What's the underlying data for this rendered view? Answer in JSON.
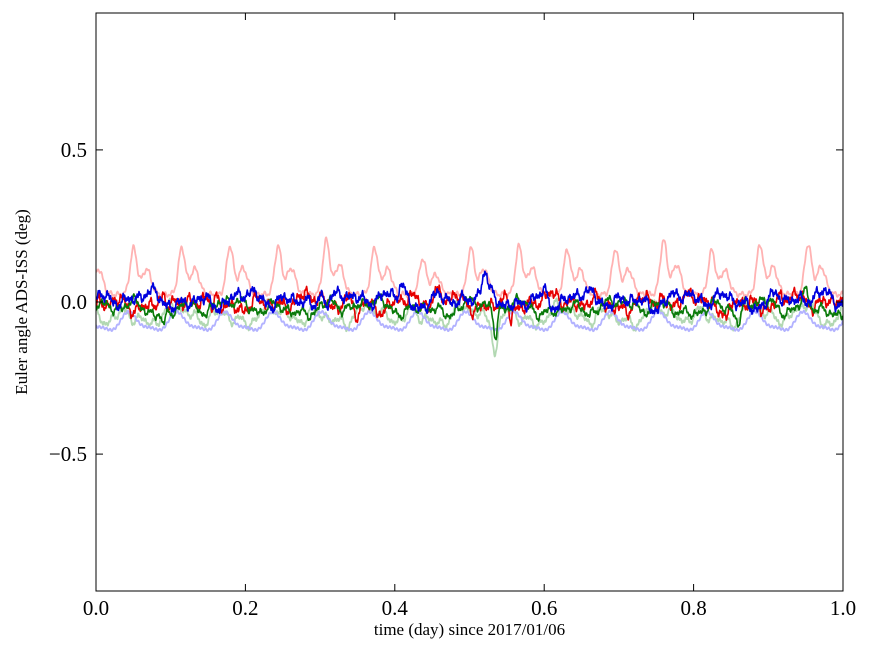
{
  "figure": {
    "background": "#ffffff",
    "frame_color": "#000000",
    "tick_color": "#000000",
    "tick_label_fontsize": 21,
    "axis_label_fontsize": 17
  },
  "chart_data": {
    "type": "line",
    "title": "",
    "xlabel": "time (day) since 2017/01/06",
    "ylabel": "Euler angle ADS-ISS (deg)",
    "xlim": [
      0.0,
      1.0
    ],
    "ylim": [
      -0.95,
      0.95
    ],
    "xticks": [
      0.0,
      0.2,
      0.4,
      0.6,
      0.8,
      1.0
    ],
    "xtick_labels": [
      "0.0",
      "0.2",
      "0.4",
      "0.6",
      "0.8",
      "1.0"
    ],
    "yticks": [
      -0.5,
      0.0,
      0.5
    ],
    "ytick_labels": [
      "−0.5",
      "0.0",
      "0.5"
    ],
    "grid": false,
    "legend": "none",
    "sampling": {
      "n_points": 1600,
      "orbit_period_day": 0.0645
    },
    "series": [
      {
        "name": "pale-red",
        "color": "#ffb2b2",
        "type": "pulse",
        "base": 0.025,
        "amp": 0.155,
        "period": 0.0645,
        "phase_frac": 0.5,
        "noise_amp": 0.006,
        "line_width": 1.8,
        "seed": 11,
        "spikes": []
      },
      {
        "name": "pale-green",
        "color": "#b2d8b2",
        "type": "noise",
        "base": -0.045,
        "amp": 0.021,
        "freqs": [
          15.5,
          31,
          52,
          91,
          7.7,
          307
        ],
        "weights": [
          0.8,
          0.5,
          0.45,
          0.3,
          0.5,
          0.2
        ],
        "line_width": 1.8,
        "seed": 22,
        "spikes": [
          {
            "x": 0.535,
            "dy": -0.105,
            "w": 0.005
          },
          {
            "x": 0.955,
            "dy": 0.06,
            "w": 0.008
          }
        ]
      },
      {
        "name": "pale-blue",
        "color": "#b2b2ff",
        "type": "sine",
        "base": -0.068,
        "amp": 0.027,
        "period": 0.0645,
        "noise_amp": 0.004,
        "line_width": 1.8,
        "seed": 33,
        "spikes": []
      },
      {
        "name": "red",
        "color": "#e60000",
        "type": "noise",
        "base": -0.002,
        "amp": 0.019,
        "freqs": [
          15.5,
          33,
          57,
          101,
          173,
          6.1,
          389
        ],
        "weights": [
          0.7,
          0.55,
          0.5,
          0.4,
          0.3,
          0.5,
          0.3
        ],
        "line_width": 1.6,
        "seed": 44,
        "spikes": [
          {
            "x": 0.095,
            "dy": -0.06,
            "w": 0.003
          },
          {
            "x": 0.155,
            "dy": -0.055,
            "w": 0.003
          },
          {
            "x": 0.35,
            "dy": -0.07,
            "w": 0.003
          },
          {
            "x": 0.455,
            "dy": 0.04,
            "w": 0.004
          },
          {
            "x": 0.555,
            "dy": -0.05,
            "w": 0.003
          },
          {
            "x": 0.845,
            "dy": -0.05,
            "w": 0.003
          }
        ]
      },
      {
        "name": "green",
        "color": "#0a7a0a",
        "type": "noise",
        "base": -0.018,
        "amp": 0.017,
        "freqs": [
          15.5,
          27,
          49,
          88,
          160,
          5.7,
          353
        ],
        "weights": [
          0.7,
          0.5,
          0.5,
          0.35,
          0.25,
          0.6,
          0.25
        ],
        "line_width": 1.6,
        "seed": 55,
        "spikes": [
          {
            "x": 0.09,
            "dy": -0.04,
            "w": 0.004
          },
          {
            "x": 0.535,
            "dy": -0.1,
            "w": 0.004
          },
          {
            "x": 0.86,
            "dy": -0.055,
            "w": 0.004
          },
          {
            "x": 0.95,
            "dy": 0.05,
            "w": 0.006
          }
        ]
      },
      {
        "name": "blue",
        "color": "#0000dd",
        "type": "noise",
        "base": 0.006,
        "amp": 0.019,
        "freqs": [
          15.5,
          29,
          53,
          97,
          181,
          6.7,
          421
        ],
        "weights": [
          0.7,
          0.5,
          0.45,
          0.35,
          0.25,
          0.5,
          0.3
        ],
        "line_width": 1.6,
        "seed": 66,
        "spikes": [
          {
            "x": 0.3,
            "dy": 0.05,
            "w": 0.005
          },
          {
            "x": 0.41,
            "dy": 0.07,
            "w": 0.006
          },
          {
            "x": 0.52,
            "dy": 0.065,
            "w": 0.005
          },
          {
            "x": 0.6,
            "dy": 0.04,
            "w": 0.004
          }
        ]
      }
    ]
  }
}
